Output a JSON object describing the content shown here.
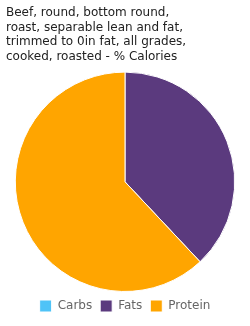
{
  "chart_data": {
    "type": "pie",
    "title": "Beef, round, bottom round,\nroast, separable lean and fat,\ntrimmed to 0in fat, all grades,\ncooked, roasted - % Calories",
    "categories": [
      "Carbs",
      "Fats",
      "Protein"
    ],
    "values": [
      0.0001,
      38,
      62
    ],
    "colors": [
      "#4fc3f7",
      "#5b3a7e",
      "#ffa500"
    ],
    "legend": "bottom"
  }
}
